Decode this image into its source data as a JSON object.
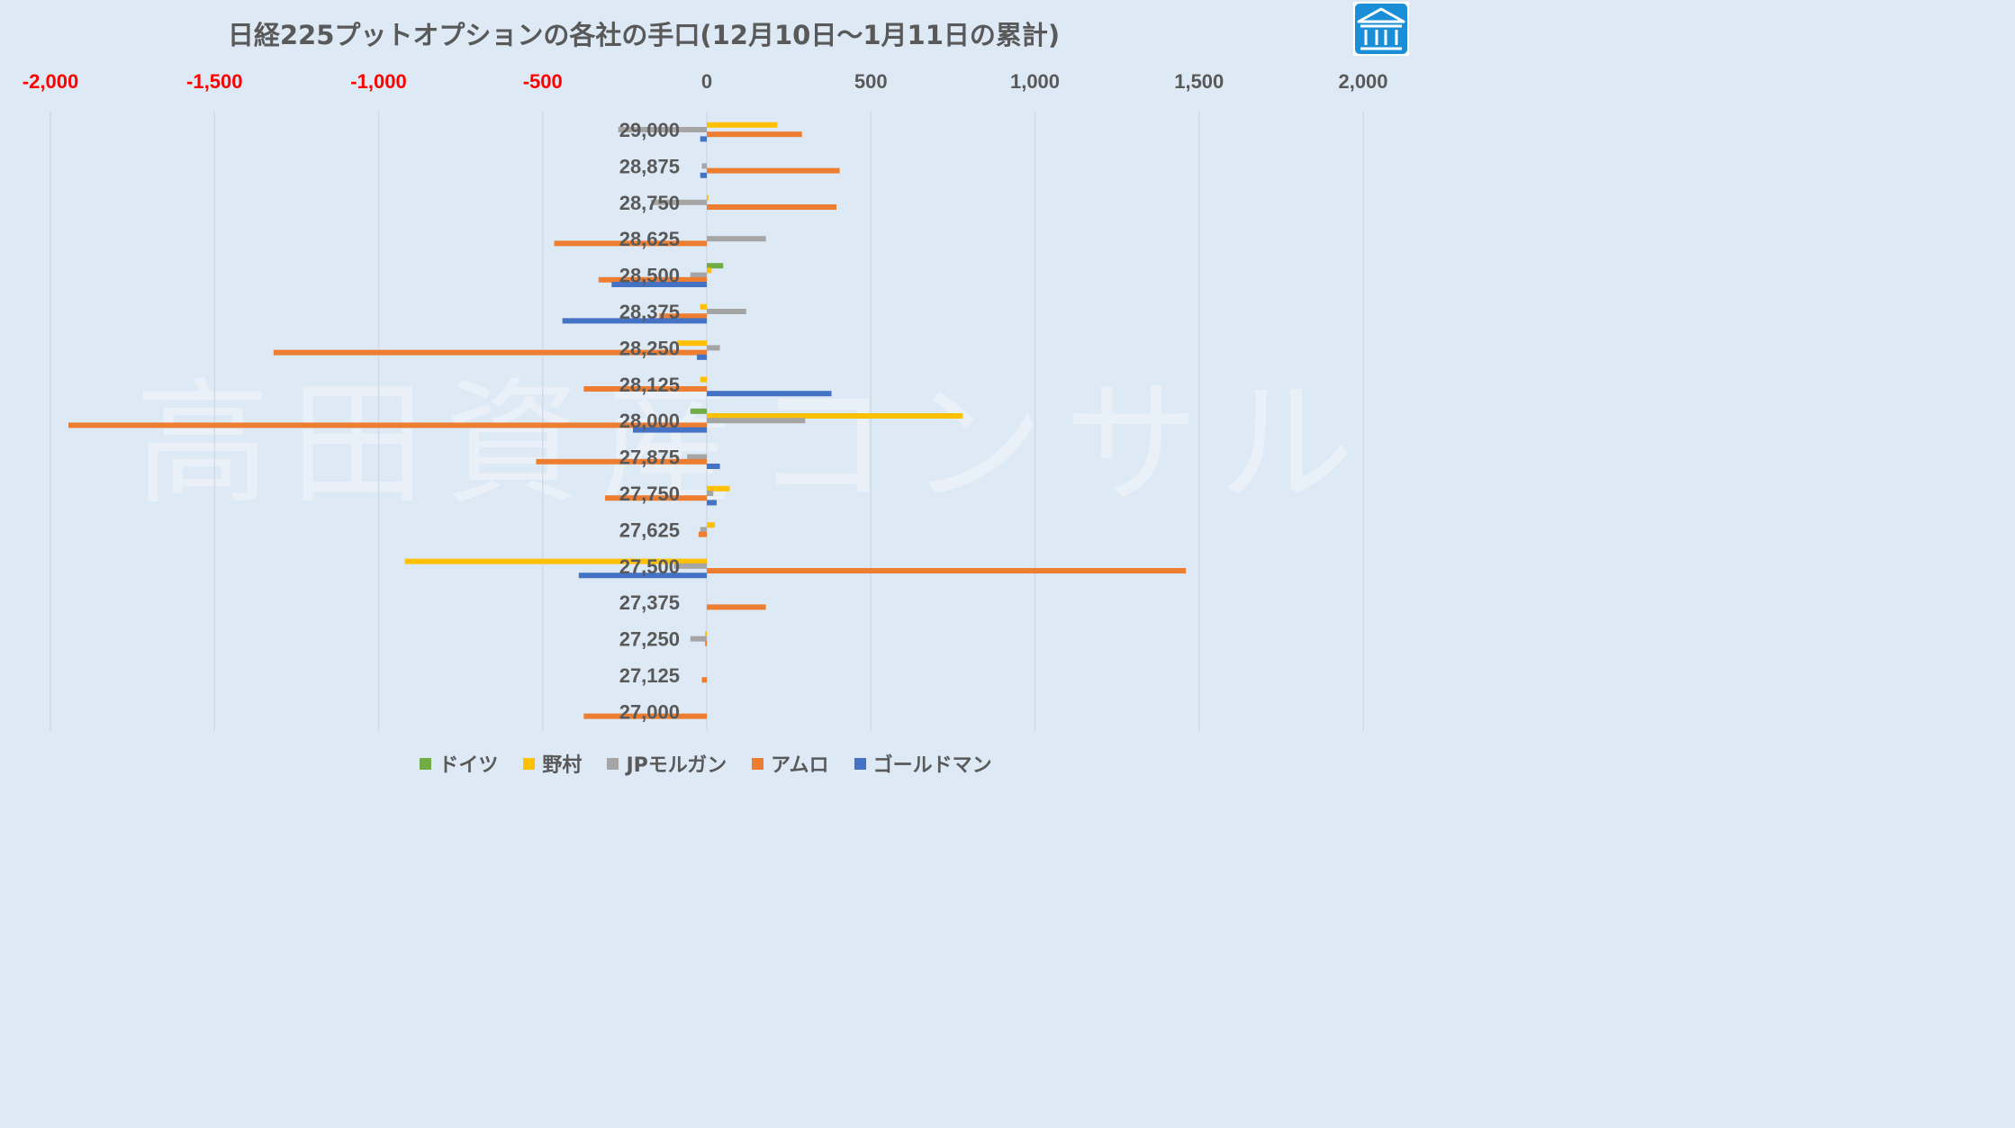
{
  "title": "日経225プットオプションの各社の手口(12月10日～1月11日の累計)",
  "watermark": "高田資産コンサル",
  "logo": {
    "icon": "bank-building-icon",
    "color": "#1a8fd8"
  },
  "colors": {
    "negative_tick": "#ff0000",
    "positive_tick": "#595959",
    "category_label": "#595959",
    "grid": "#cfd8e3"
  },
  "chart_data": {
    "type": "bar",
    "orientation": "horizontal",
    "xlim": [
      -2000,
      2000
    ],
    "x_ticks": [
      -2000,
      -1500,
      -1000,
      -500,
      0,
      500,
      1000,
      1500,
      2000
    ],
    "x_tick_labels": [
      "-2,000",
      "-1,500",
      "-1,000",
      "-500",
      "0",
      "500",
      "1,000",
      "1,500",
      "2,000"
    ],
    "x_axis_position": "top",
    "grid": true,
    "legend_position": "bottom",
    "categories": [
      "29,000",
      "28,875",
      "28,750",
      "28,625",
      "28,500",
      "28,375",
      "28,250",
      "28,125",
      "28,000",
      "27,875",
      "27,750",
      "27,625",
      "27,500",
      "27,375",
      "27,250",
      "27,125",
      "27,000"
    ],
    "series": [
      {
        "name": "ドイツ",
        "color": "#70ad47",
        "values": [
          0,
          0,
          0,
          0,
          50,
          0,
          0,
          0,
          -50,
          0,
          0,
          0,
          0,
          0,
          0,
          0,
          0
        ]
      },
      {
        "name": "野村",
        "color": "#ffc000",
        "values": [
          215,
          0,
          5,
          0,
          15,
          -20,
          -90,
          -20,
          780,
          0,
          70,
          25,
          -920,
          0,
          -5,
          0,
          0
        ]
      },
      {
        "name": "JPモルガン",
        "color": "#a5a5a5",
        "values": [
          -270,
          -15,
          -170,
          180,
          -50,
          120,
          40,
          0,
          300,
          -60,
          20,
          -20,
          -100,
          0,
          -50,
          0,
          0
        ]
      },
      {
        "name": "アムロ",
        "color": "#ed7d31",
        "values": [
          290,
          405,
          395,
          -465,
          -330,
          -145,
          -1320,
          -375,
          -1945,
          -520,
          -310,
          -25,
          1460,
          180,
          -5,
          -15,
          -375
        ]
      },
      {
        "name": "ゴールドマン",
        "color": "#4472c4",
        "values": [
          -20,
          -20,
          0,
          0,
          -290,
          -440,
          -30,
          380,
          -225,
          40,
          30,
          0,
          -390,
          0,
          0,
          0,
          0
        ]
      }
    ]
  }
}
